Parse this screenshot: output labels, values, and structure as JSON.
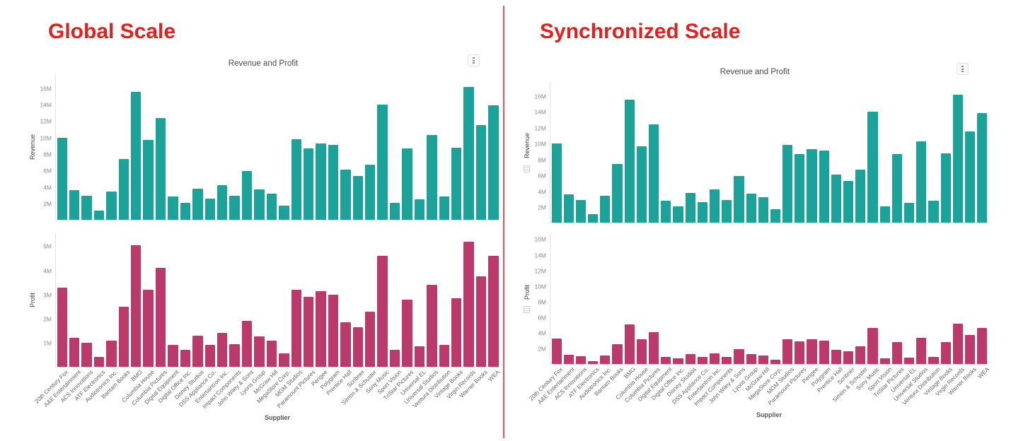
{
  "page": {
    "left_heading": "Global Scale",
    "right_heading": "Synchronized Scale"
  },
  "colors": {
    "revenue_teal": "#1ba299",
    "profit_magenta": "#bb3a69",
    "heading_red": "#e2201d",
    "divider_red": "#e4595c"
  },
  "icons": {
    "menu": "kebab-menu-icon",
    "sync": "linked-scale-icon"
  },
  "chart_data": {
    "type": "bar",
    "title": "Revenue and Profit",
    "xlabel": "Supplier",
    "grid": false,
    "legend": false,
    "categories": [
      "20th Century Fox",
      "A&E Entertainment",
      "ACS Innovations",
      "ATF Electronics",
      "Audiotronics Inc.",
      "Bantam Books",
      "BMG",
      "Columbia House",
      "Columbia Pictures",
      "Digital Equipment",
      "Digital Office Inc.",
      "Disney Studios",
      "DSS Appliance Co.",
      "Entertaintron Inc.",
      "Impact Components",
      "John Wiley & Sons",
      "Lyons Group",
      "McGraw Hill",
      "MegaStore Corp.",
      "MGM Studios",
      "Paramount Pictures",
      "Perigee",
      "Polygram",
      "Prentice Hall",
      "Scribner",
      "Simon & Schuster",
      "Sony Music",
      "Sport Vision",
      "TriStar Pictures",
      "Universal EL",
      "Universal Studios",
      "Ventura Distribution",
      "Vintage Books",
      "Virgin Records",
      "Warner Books",
      "WEA"
    ],
    "series": [
      {
        "name": "Revenue",
        "color": "#1ba299",
        "unit": "M",
        "values": [
          10.0,
          3.6,
          2.9,
          1.1,
          3.4,
          7.4,
          15.6,
          9.7,
          12.4,
          2.8,
          2.1,
          3.8,
          2.6,
          4.2,
          2.9,
          5.9,
          3.7,
          3.2,
          1.7,
          9.8,
          8.7,
          9.3,
          9.1,
          6.1,
          5.3,
          6.7,
          14.0,
          2.1,
          8.7,
          2.5,
          10.3,
          2.8,
          8.8,
          16.2,
          11.5,
          13.9
        ]
      },
      {
        "name": "Profit",
        "color": "#bb3a69",
        "unit": "M",
        "values": [
          3.3,
          1.2,
          1.0,
          0.4,
          1.1,
          2.5,
          5.05,
          3.2,
          4.1,
          0.9,
          0.7,
          1.3,
          0.9,
          1.4,
          0.95,
          1.9,
          1.25,
          1.1,
          0.55,
          3.2,
          2.9,
          3.15,
          3.0,
          1.85,
          1.65,
          2.3,
          4.6,
          0.7,
          2.8,
          0.85,
          3.4,
          0.9,
          2.85,
          5.2,
          3.75,
          4.6
        ]
      }
    ],
    "panels": [
      {
        "heading": "Global Scale",
        "axes": [
          {
            "series": "Revenue",
            "ylabel": "Revenue",
            "ticks": [
              "2M",
              "4M",
              "6M",
              "8M",
              "10M",
              "12M",
              "14M",
              "16M"
            ],
            "ymax_m": 17.8,
            "sync_icon": false
          },
          {
            "series": "Profit",
            "ylabel": "Profit",
            "ticks": [
              "1M",
              "2M",
              "3M",
              "4M",
              "5M"
            ],
            "ymax_m": 5.55,
            "sync_icon": false
          }
        ]
      },
      {
        "heading": "Synchronized Scale",
        "axes": [
          {
            "series": "Revenue",
            "ylabel": "Revenue",
            "ticks": [
              "2M",
              "4M",
              "6M",
              "8M",
              "10M",
              "12M",
              "14M",
              "16M"
            ],
            "ymax_m": 17.8,
            "sync_icon": true
          },
          {
            "series": "Profit",
            "ylabel": "Profit",
            "ticks": [
              "2M",
              "4M",
              "6M",
              "8M",
              "10M",
              "12M",
              "14M",
              "16M"
            ],
            "ymax_m": 16.8,
            "sync_icon": true
          }
        ]
      }
    ]
  }
}
